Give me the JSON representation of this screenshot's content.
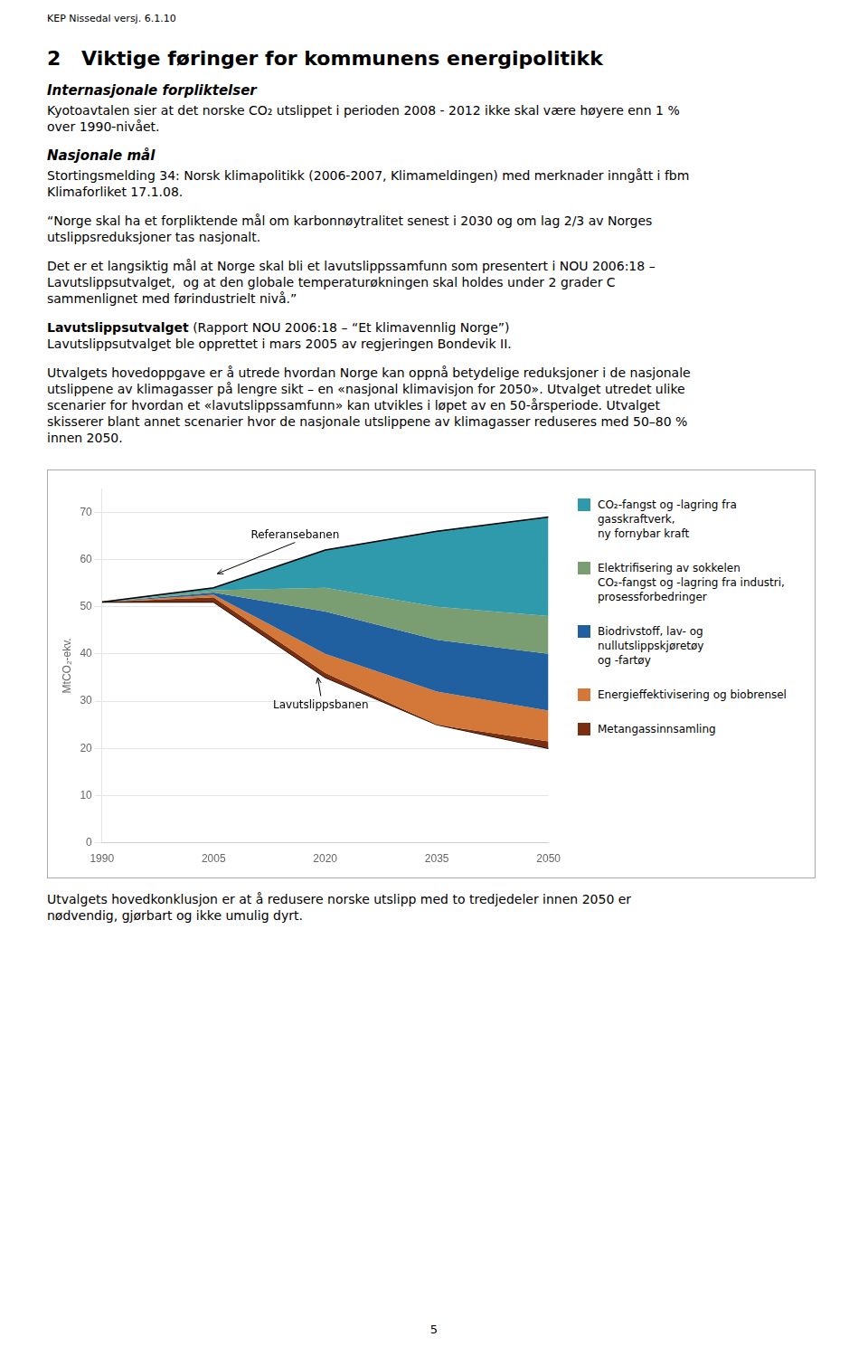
{
  "page": {
    "header": "KEP Nissedal versj. 6.1.10",
    "section_number": "2",
    "section_title": "Viktige føringer for kommunens energipolitikk",
    "before_chart": [
      {
        "heading": "Internasjonale forpliktelser",
        "lines": [
          "Kyotoavtalen sier at det norske CO₂ utslippet i perioden 2008 - 2012 ikke skal være høyere enn 1 %",
          "over 1990-nivået."
        ]
      },
      {
        "heading": "Nasjonale mål",
        "lines": [
          "Stortingsmelding 34: Norsk klimapolitikk (2006-2007, Klimameldingen) med merknader inngått i fbm",
          "Klimaforliket 17.1.08."
        ]
      },
      {
        "lines": [
          "“Norge skal ha et forpliktende mål om karbonnøytralitet senest i 2030 og om lag 2/3 av Norges",
          "utslippsreduksjoner tas nasjonalt."
        ]
      },
      {
        "lines": [
          "Det er et langsiktig mål at Norge skal bli et lavutslippssamfunn som presentert i NOU 2006:18 –",
          "Lavutslippsutvalget,  og at den globale temperaturøkningen skal holdes under 2 grader C",
          "sammenlignet med førindustrielt nivå.”"
        ]
      },
      {
        "lines": [
          [
            {
              "text": "Lavutslippsutvalget",
              "bold": true
            },
            {
              "text": " (Rapport NOU 2006:18 – “Et klimavennlig Norge”)"
            }
          ],
          "Lavutslippsutvalget ble opprettet i mars 2005 av regjeringen Bondevik II."
        ]
      },
      {
        "lines": [
          "Utvalgets hovedoppgave er å utrede hvordan Norge kan oppnå betydelige reduksjoner i de nasjonale",
          "utslippene av klimagasser på lengre sikt – en «nasjonal klimavisjon for 2050». Utvalget utredet ulike",
          "scenarier for hvordan et «lavutslippssamfunn» kan utvikles i løpet av en 50-årsperiode. Utvalget",
          "skisserer blant annet scenarier hvor de nasjonale utslippene av klimagasser reduseres med 50–80 %",
          "innen 2050."
        ]
      }
    ],
    "after_chart": [
      {
        "lines": [
          "Utvalgets hovedkonklusjon er at å redusere norske utslipp med to tredjedeler innen 2050 er",
          "nødvendig, gjørbart og ikke umulig dyrt."
        ]
      }
    ],
    "page_number": "5"
  },
  "chart_data": {
    "type": "area",
    "x": [
      1990,
      2005,
      2020,
      2035,
      2050
    ],
    "xlim": [
      1990,
      2050
    ],
    "xticks": [
      1990,
      2005,
      2020,
      2035,
      2050
    ],
    "ylim": [
      0,
      75
    ],
    "yticks": [
      0,
      10,
      20,
      30,
      40,
      50,
      60,
      70
    ],
    "y_label": "MtCO₂-ekv.",
    "grid": true,
    "legend": "right",
    "series": [
      {
        "name": "CO₂-fangst og -lagring fra gasskraftverk,\nny fornybar kraft",
        "color": "#2e9aac",
        "values": [
          51,
          54,
          62,
          66,
          69
        ]
      },
      {
        "name": "Elektrifisering av sokkelen\nCO₂-fangst og -lagring fra industri,\nprosessforbedringer",
        "color": "#7a9e72",
        "values": [
          51,
          53.5,
          54,
          50,
          48
        ]
      },
      {
        "name": "Biodrivstoff, lav- og nullutslippskjøretøy\nog -fartøy",
        "color": "#2060a0",
        "values": [
          51,
          53,
          49,
          43,
          40
        ]
      },
      {
        "name": "Energieffektivisering og biobrensel",
        "color": "#d4783a",
        "values": [
          51,
          52.5,
          40,
          32,
          28
        ]
      },
      {
        "name": "Metangassinnsamling",
        "color": "#7a3010",
        "values": [
          51,
          52,
          36,
          25,
          21.5
        ]
      },
      {
        "color": "#000000",
        "values": [
          51,
          51,
          35,
          25,
          20
        ]
      }
    ],
    "annotations": [
      {
        "text": "Referansebanen",
        "x": 2005.5,
        "y": 57,
        "text_x": 2010,
        "text_y": 64
      },
      {
        "text": "Lavutslippsbanen",
        "x": 2019,
        "y": 35,
        "text_x": 2013,
        "text_y": 28
      }
    ]
  }
}
